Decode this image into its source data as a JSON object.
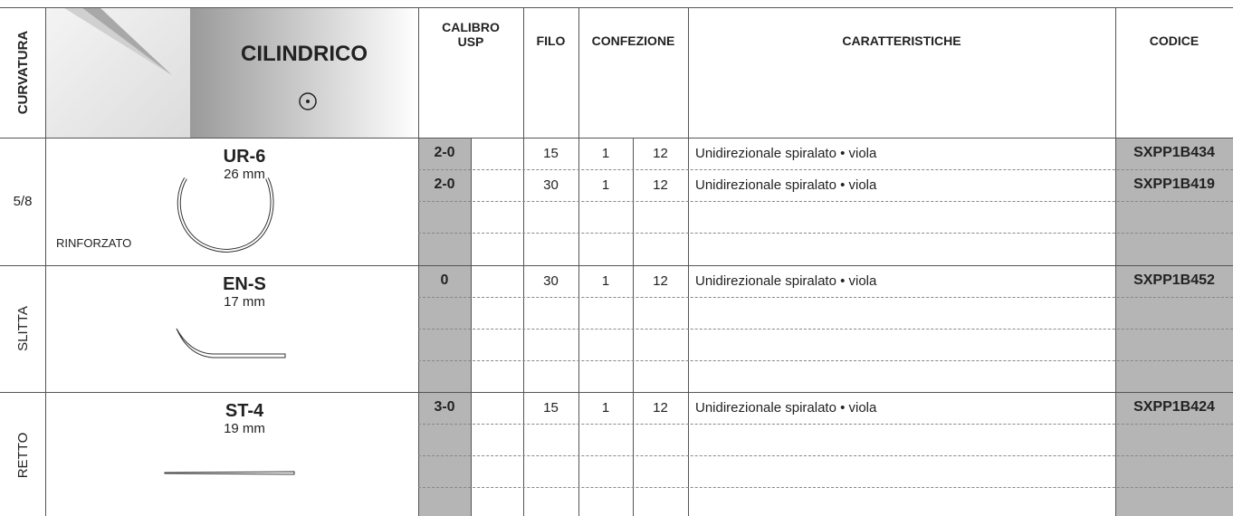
{
  "header": {
    "curvatura": "CURVATURA",
    "title": "CILINDRICO",
    "calibro": "CALIBRO USP",
    "filo": "FILO",
    "confezione": "CONFEZIONE",
    "caratteristiche": "CARATTERISTICHE",
    "codice": "CODICE"
  },
  "groups": [
    {
      "curvature": "5/8",
      "curvature_vertical": false,
      "needle": "UR-6",
      "length": "26 mm",
      "note": "RINFORZATO",
      "rows": [
        {
          "usp": "2-0",
          "filo": 15,
          "conf1": 1,
          "conf2": 12,
          "caratteristiche": "Unidirezionale spiralato • viola",
          "codice": "SXPP1B434"
        },
        {
          "usp": "2-0",
          "filo": 30,
          "conf1": 1,
          "conf2": 12,
          "caratteristiche": "Unidirezionale spiralato • viola",
          "codice": "SXPP1B419"
        }
      ]
    },
    {
      "curvature": "SLITTA",
      "curvature_vertical": true,
      "needle": "EN-S",
      "length": "17 mm",
      "rows": [
        {
          "usp": "0",
          "filo": 30,
          "conf1": 1,
          "conf2": 12,
          "caratteristiche": "Unidirezionale spiralato • viola",
          "codice": "SXPP1B452"
        }
      ]
    },
    {
      "curvature": "RETTO",
      "curvature_vertical": true,
      "needle": "ST-4",
      "length": "19 mm",
      "rows": [
        {
          "usp": "3-0",
          "filo": 15,
          "conf1": 1,
          "conf2": 12,
          "caratteristiche": "Unidirezionale spiralato • viola",
          "codice": "SXPP1B424"
        }
      ]
    }
  ]
}
